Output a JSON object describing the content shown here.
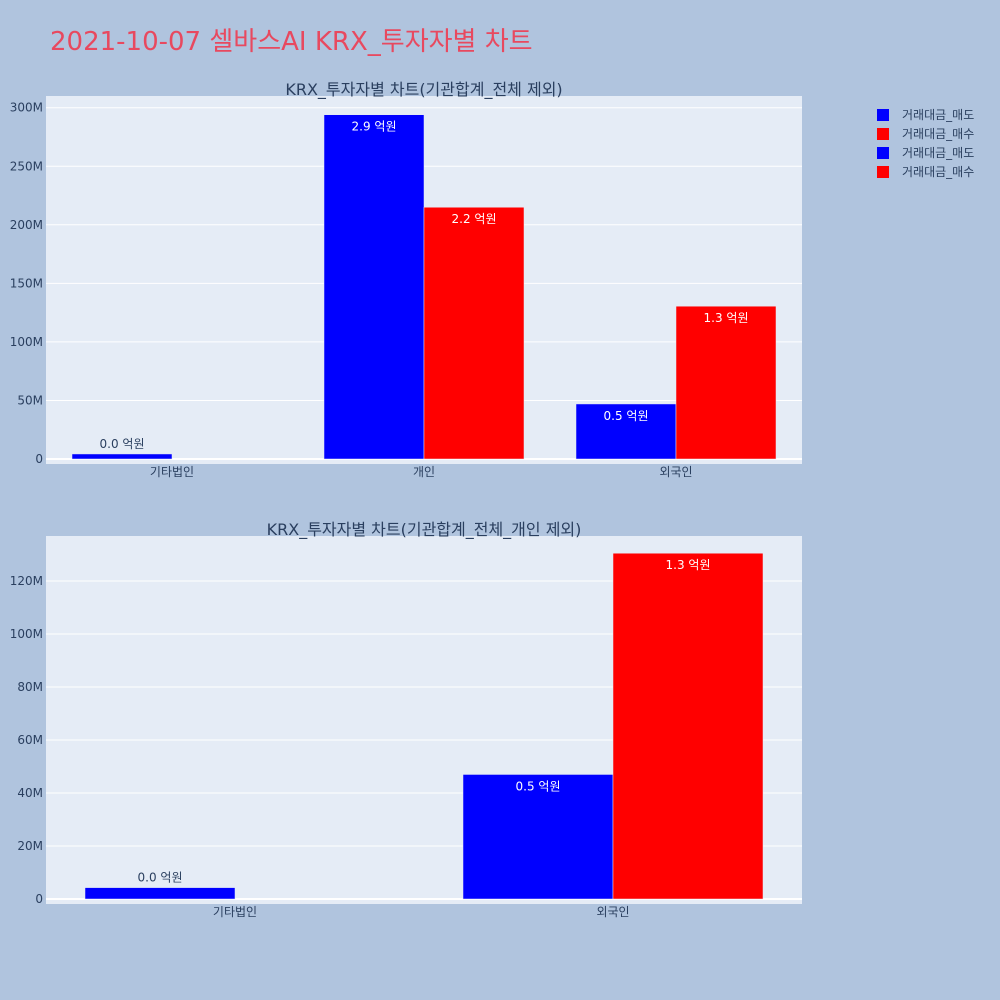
{
  "title": "2021-10-07 셀바스AI KRX_투자자별 차트",
  "colors": {
    "page_bg": "#b0c4de",
    "plot_bg": "#e5ecf6",
    "grid": "#ffffff",
    "title": "#e8495f",
    "text": "#2a3f5f",
    "sell": "#0000ff",
    "buy": "#ff0000"
  },
  "legend": [
    {
      "label": "거래대금_매도",
      "color": "#0000ff"
    },
    {
      "label": "거래대금_매수",
      "color": "#ff0000"
    },
    {
      "label": "거래대금_매도",
      "color": "#0000ff"
    },
    {
      "label": "거래대금_매수",
      "color": "#ff0000"
    }
  ],
  "chart_data": [
    {
      "type": "bar",
      "title": "KRX_투자자별 차트(기관합계_전체 제외)",
      "categories": [
        "기타법인",
        "개인",
        "외국인"
      ],
      "ylim": [
        0,
        310000000
      ],
      "yticks": [
        0,
        50000000,
        100000000,
        150000000,
        200000000,
        250000000,
        300000000
      ],
      "ytick_labels": [
        "0",
        "50M",
        "100M",
        "150M",
        "200M",
        "250M",
        "300M"
      ],
      "grid": true,
      "series": [
        {
          "name": "거래대금_매도",
          "color": "#0000ff",
          "values": [
            4300000,
            294000000,
            47000000
          ],
          "labels": [
            "0.0 억원",
            "2.9 억원",
            "0.5 억원"
          ]
        },
        {
          "name": "거래대금_매수",
          "color": "#ff0000",
          "values": [
            0,
            215000000,
            130500000
          ],
          "labels": [
            "",
            "2.2 억원",
            "1.3 억원"
          ]
        }
      ]
    },
    {
      "type": "bar",
      "title": "KRX_투자자별 차트(기관합계_전체_개인 제외)",
      "categories": [
        "기타법인",
        "외국인"
      ],
      "ylim": [
        0,
        137000000
      ],
      "yticks": [
        0,
        20000000,
        40000000,
        60000000,
        80000000,
        100000000,
        120000000
      ],
      "ytick_labels": [
        "0",
        "20M",
        "40M",
        "60M",
        "80M",
        "100M",
        "120M"
      ],
      "grid": true,
      "series": [
        {
          "name": "거래대금_매도",
          "color": "#0000ff",
          "values": [
            4300000,
            47000000
          ],
          "labels": [
            "0.0 억원",
            "0.5 억원"
          ]
        },
        {
          "name": "거래대금_매수",
          "color": "#ff0000",
          "values": [
            0,
            130500000
          ],
          "labels": [
            "",
            "1.3 억원"
          ]
        }
      ]
    }
  ]
}
